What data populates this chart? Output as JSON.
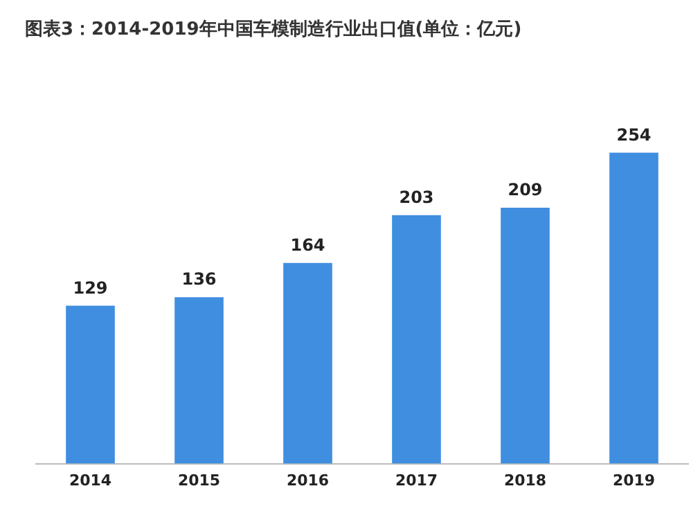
{
  "chart_data": {
    "type": "bar",
    "title": "图表3：2014-2019年中国车模制造行业出口值(单位：亿元)",
    "categories": [
      "2014",
      "2015",
      "2016",
      "2017",
      "2018",
      "2019"
    ],
    "values": [
      129,
      136,
      164,
      203,
      209,
      254
    ],
    "color": "#3f8ee0",
    "data_labels": true,
    "grid": false,
    "legend": false
  }
}
